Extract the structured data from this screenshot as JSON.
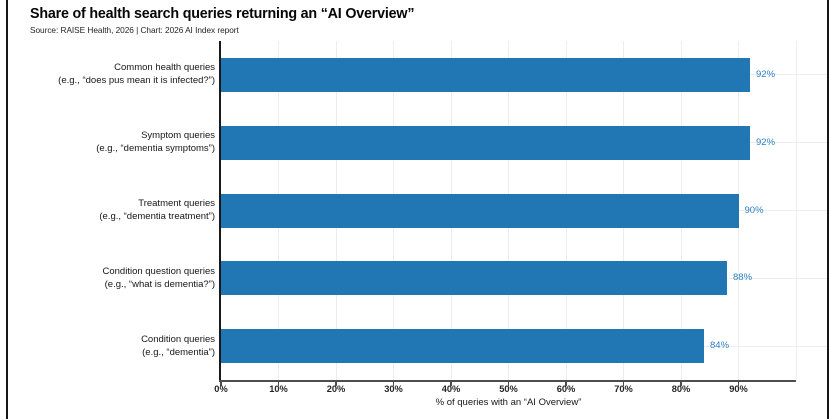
{
  "header": {
    "title": "Share of health search queries returning an “AI Overview”",
    "source_line": "Source: RAISE Health, 2026 | Chart: 2026 AI Index report"
  },
  "chart_data": {
    "type": "bar",
    "orientation": "horizontal",
    "title": "Share of health search queries returning an “AI Overview”",
    "source": "Source: RAISE Health, 2026 | Chart: 2026 AI Index report",
    "categories": [
      {
        "label": "Common health queries",
        "example": "(e.g., “does pus mean it is infected?”)"
      },
      {
        "label": "Symptom queries",
        "example": "(e.g., “dementia symptoms”)"
      },
      {
        "label": "Treatment queries",
        "example": "(e.g., “dementia treatment”)"
      },
      {
        "label": "Condition question queries",
        "example": "(e.g., “what is dementia?”)"
      },
      {
        "label": "Condition queries",
        "example": "(e.g., “dementia”)"
      }
    ],
    "values": [
      92,
      92,
      90,
      88,
      84
    ],
    "value_labels": [
      "92%",
      "92%",
      "90%",
      "88%",
      "84%"
    ],
    "xlabel": "% of queries with an “AI Overview”",
    "xlim": [
      0,
      100
    ],
    "x_tick_step": 10,
    "x_tick_labels": [
      "0%",
      "10%",
      "20%",
      "30%",
      "40%",
      "50%",
      "60%",
      "70%",
      "80%",
      "90%"
    ],
    "grid": "light gray vertical lines at each 10% and horizontal lines at each bar center",
    "legend": "none",
    "bar_color": "#2077b4",
    "value_label_color": "#2f80c3"
  }
}
